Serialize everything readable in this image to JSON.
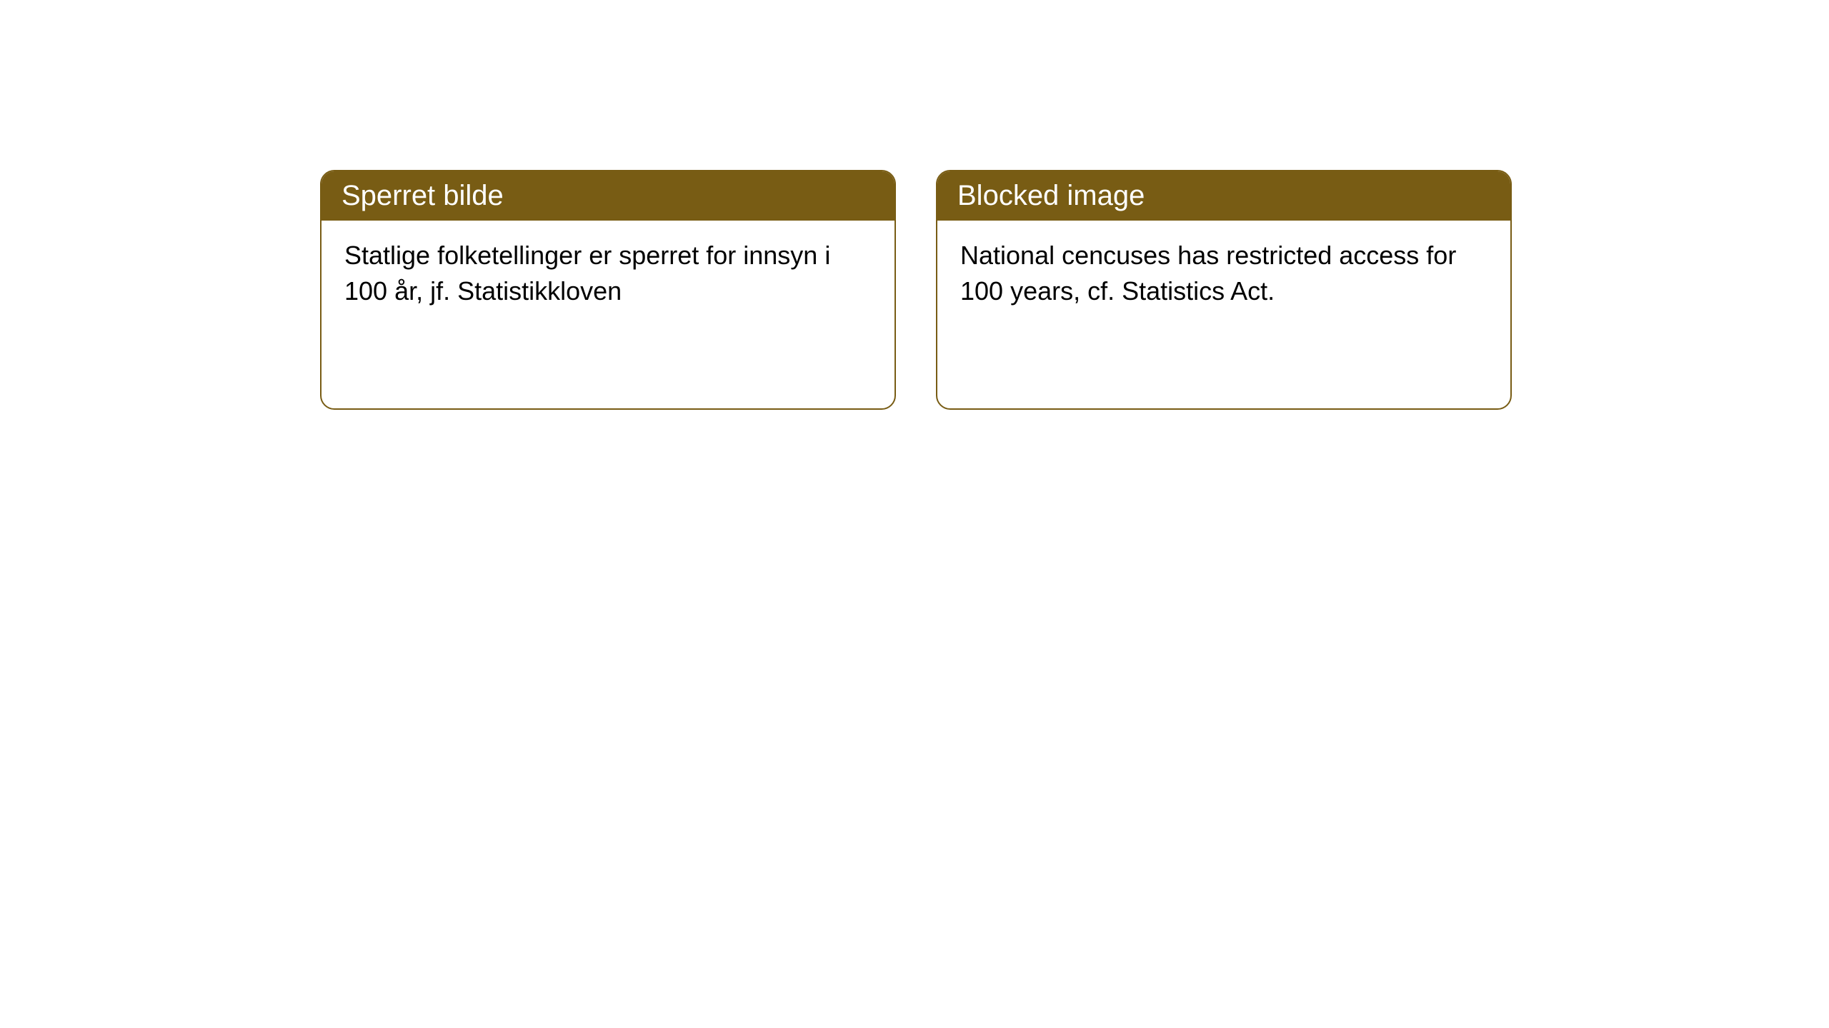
{
  "cards": [
    {
      "title": "Sperret bilde",
      "body": "Statlige folketellinger er sperret for innsyn i 100 år, jf. Statistikkloven"
    },
    {
      "title": "Blocked image",
      "body": "National cencuses has restricted access for 100 years, cf. Statistics Act."
    }
  ],
  "style": {
    "header_background": "#785c14",
    "header_text_color": "#ffffff",
    "border_color": "#785c14",
    "body_text_color": "#000000",
    "page_background": "#ffffff",
    "border_radius": 20,
    "header_fontsize": 40,
    "body_fontsize": 36
  }
}
